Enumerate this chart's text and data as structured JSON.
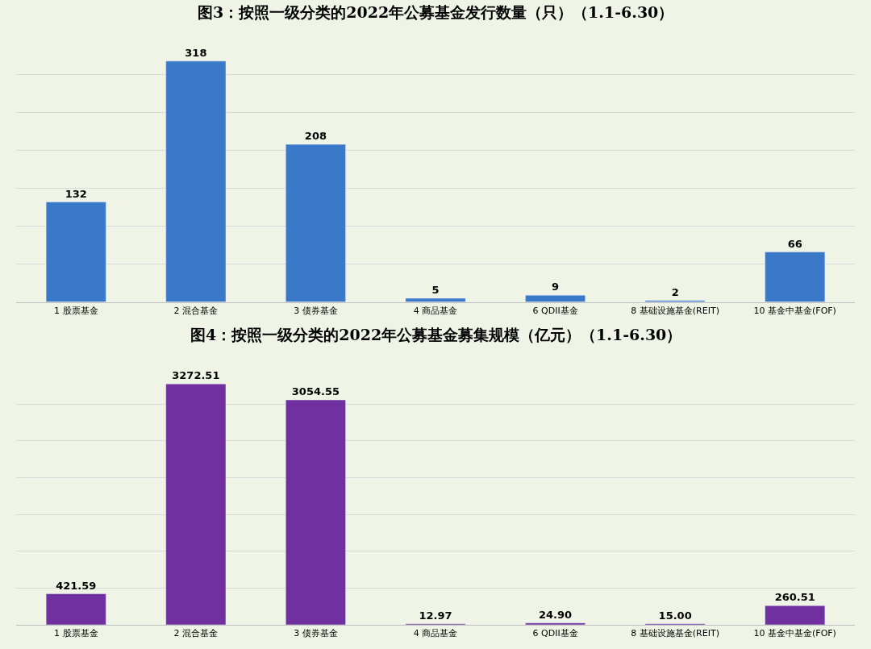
{
  "chart_data": [
    {
      "type": "bar",
      "title": "图3：按照一级分类的2022年公募基金发行数量（只）（1.1-6.30）",
      "categories": [
        "1 股票基金",
        "2 混合基金",
        "3 债券基金",
        "4 商品基金",
        "6 QDII基金",
        "8 基础设施基金(REIT)",
        "10 基金中基金(FOF)"
      ],
      "values": [
        132,
        318,
        208,
        5,
        9,
        2,
        66
      ],
      "color": "#3a78c8",
      "data_labels": true,
      "grid": "y",
      "tick_labels": "x"
    },
    {
      "type": "bar",
      "title": "图4：按照一级分类的2022年公募基金募集规模（亿元）（1.1-6.30）",
      "categories": [
        "1 股票基金",
        "2 混合基金",
        "3 债券基金",
        "4 商品基金",
        "6 QDII基金",
        "8 基础设施基金(REIT)",
        "10 基金中基金(FOF)"
      ],
      "values": [
        421.59,
        3272.51,
        3054.55,
        12.97,
        24.9,
        15.0,
        260.51
      ],
      "value_labels": [
        "421.59",
        "3272.51",
        "3054.55",
        "12.97",
        "24.90",
        "15.00",
        "260.51"
      ],
      "color": "#7030a0",
      "grid": "y",
      "tick_labels": "x"
    }
  ]
}
